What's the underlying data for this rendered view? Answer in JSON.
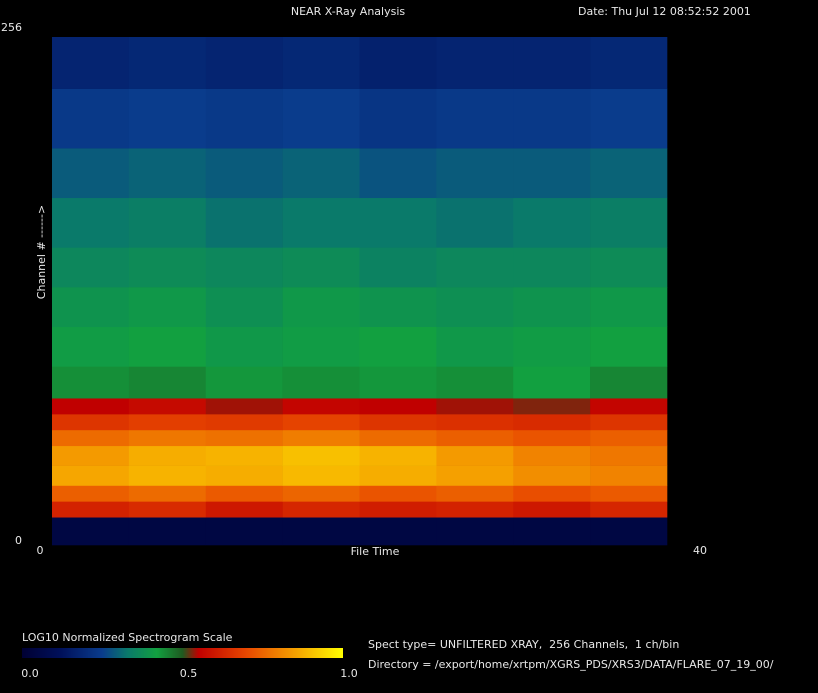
{
  "chart_data": {
    "type": "heatmap",
    "title": "NEAR X-Ray Analysis",
    "date": "Date: Thu Jul 12 08:52:52 2001",
    "xlabel": "File Time",
    "ylabel": "Channel # ------>",
    "xlim": [
      0,
      40
    ],
    "xticks": [
      0,
      40
    ],
    "ylim": [
      0,
      256
    ],
    "yticks": [
      0,
      256
    ],
    "x_bins": [
      0,
      5,
      10,
      15,
      20,
      25,
      30,
      35,
      40
    ],
    "y_bins": [
      0,
      14,
      22,
      30,
      40,
      50,
      58,
      66,
      74,
      90,
      110,
      130,
      150,
      175,
      200,
      230,
      256
    ],
    "z": [
      [
        0.05,
        0.05,
        0.05,
        0.05,
        0.05,
        0.05,
        0.05,
        0.05
      ],
      [
        0.62,
        0.64,
        0.6,
        0.63,
        0.61,
        0.62,
        0.6,
        0.63
      ],
      [
        0.74,
        0.76,
        0.73,
        0.75,
        0.72,
        0.74,
        0.71,
        0.73
      ],
      [
        0.86,
        0.88,
        0.87,
        0.89,
        0.87,
        0.85,
        0.82,
        0.8
      ],
      [
        0.84,
        0.87,
        0.88,
        0.9,
        0.88,
        0.84,
        0.8,
        0.78
      ],
      [
        0.76,
        0.78,
        0.77,
        0.79,
        0.76,
        0.74,
        0.72,
        0.74
      ],
      [
        0.66,
        0.68,
        0.67,
        0.69,
        0.66,
        0.65,
        0.64,
        0.66
      ],
      [
        0.55,
        0.57,
        0.54,
        0.56,
        0.55,
        0.54,
        0.53,
        0.56
      ],
      [
        0.44,
        0.45,
        0.43,
        0.44,
        0.43,
        0.44,
        0.42,
        0.45
      ],
      [
        0.41,
        0.42,
        0.4,
        0.41,
        0.42,
        0.4,
        0.41,
        0.42
      ],
      [
        0.39,
        0.4,
        0.38,
        0.4,
        0.39,
        0.38,
        0.39,
        0.4
      ],
      [
        0.36,
        0.37,
        0.36,
        0.37,
        0.35,
        0.36,
        0.36,
        0.37
      ],
      [
        0.33,
        0.34,
        0.32,
        0.33,
        0.33,
        0.32,
        0.33,
        0.34
      ],
      [
        0.29,
        0.3,
        0.29,
        0.3,
        0.28,
        0.29,
        0.29,
        0.3
      ],
      [
        0.24,
        0.25,
        0.24,
        0.25,
        0.23,
        0.24,
        0.24,
        0.25
      ],
      [
        0.18,
        0.19,
        0.18,
        0.19,
        0.17,
        0.18,
        0.18,
        0.19
      ]
    ],
    "colorbar_title": "LOG10 Normalized Spectrogram Scale",
    "clim": [
      0,
      1
    ],
    "cticks": [
      {
        "value": 0,
        "label": "0.0"
      },
      {
        "value": 0.5,
        "label": "0.5"
      },
      {
        "value": 1,
        "label": "1.0"
      }
    ],
    "colorscale": [
      [
        0,
        "#000033"
      ],
      [
        0.12,
        "#00105a"
      ],
      [
        0.25,
        "#0a3c8c"
      ],
      [
        0.33,
        "#0a7a6a"
      ],
      [
        0.42,
        "#12a040"
      ],
      [
        0.5,
        "#1f5a20"
      ],
      [
        0.55,
        "#c00000"
      ],
      [
        0.7,
        "#e84800"
      ],
      [
        0.85,
        "#f5a000"
      ],
      [
        1,
        "#ffff00"
      ]
    ],
    "info": [
      "Spect type= UNFILTERED XRAY,  256 Channels,  1 ch/bin",
      "Directory = /export/home/xrtpm/XGRS_PDS/XRS3/DATA/FLARE_07_19_00/"
    ]
  }
}
